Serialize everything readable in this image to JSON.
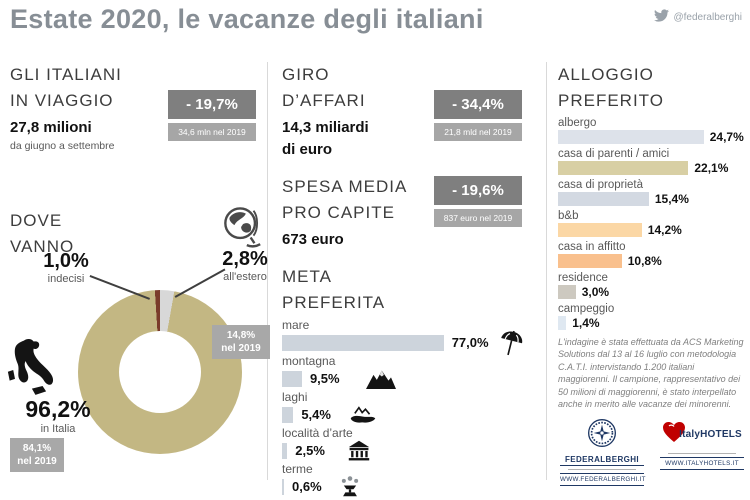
{
  "header": {
    "title": "Estate 2020, le vacanze degli italiani",
    "twitter_handle": "@federalberghi"
  },
  "colors": {
    "title_gray": "#878e95",
    "badge_dark": "#7f7f7f",
    "badge_light": "#a6a6a6",
    "navy": "#1f3864",
    "heart_red": "#c00000"
  },
  "travelers": {
    "heading_line1": "GLI ITALIANI",
    "heading_line2": "IN VIAGGIO",
    "value": "27,8 milioni",
    "period": "da giugno a settembre",
    "delta": "- 19,7%",
    "previous": "34,6 mln nel 2019"
  },
  "business": {
    "heading_line1": "GIRO",
    "heading_line2": "D’AFFARI",
    "value_line1": "14,3 miliardi",
    "value_line2": "di euro",
    "delta": "- 34,4%",
    "previous": "21,8 mld nel 2019"
  },
  "spending": {
    "heading_line1": "SPESA MEDIA",
    "heading_line2": "PRO CAPITE",
    "value": "673 euro",
    "delta": "- 19,6%",
    "previous": "837 euro nel 2019"
  },
  "where": {
    "heading_line1": "DOVE",
    "heading_line2": "VANNO",
    "undecided_value": "1,0%",
    "undecided_label": "indecisi",
    "abroad_value": "2,8%",
    "abroad_label": "all'estero",
    "abroad_2019_line1": "14,8%",
    "abroad_2019_line2": "nel 2019",
    "italy_value": "96,2%",
    "italy_label": "in Italia",
    "italy_2019_line1": "84,1%",
    "italy_2019_line2": "nel 2019"
  },
  "destination": {
    "heading_line1": "META",
    "heading_line2": "PREFERITA"
  },
  "lodging": {
    "heading_line1": "ALLOGGIO",
    "heading_line2": "PREFERITO"
  },
  "methodology": "L'indagine è stata effettuata da ACS Marketing Solutions dal 13 al 16 luglio con metodologia C.A.T.I. intervistando 1.200 italiani maggiorenni. Il campione, rappresentativo dei 50 milioni di maggiorenni, è stato interpellato anche in merito alle vacanze dei minorenni.",
  "logos": {
    "federalberghi_name": "FEDERALBERGHI",
    "federalberghi_url": "WWW.FEDERALBERGHI.IT",
    "italyhotels_name": "ItalyHOTELS",
    "italyhotels_url": "WWW.ITALYHOTELS.IT"
  },
  "chart_data": [
    {
      "type": "pie",
      "title": "DOVE VANNO",
      "labels": [
        "in Italia",
        "all'estero",
        "indecisi"
      ],
      "values": [
        96.2,
        2.8,
        1.0
      ],
      "value_labels": [
        "96,2%",
        "2,8%",
        "1,0%"
      ],
      "colors": [
        "#c3b783",
        "#d8d8d8",
        "#7a3b2a"
      ],
      "annotations": [
        "in Italia: 84,1% nel 2019",
        "all'estero: 14,8% nel 2019"
      ]
    },
    {
      "type": "bar",
      "title": "META PREFERITA",
      "orientation": "horizontal",
      "unit": "%",
      "items": [
        {
          "label": "mare",
          "pct": 77.0,
          "value_label": "77,0%",
          "icon": "beach-umbrella-icon",
          "color": "#cdd4dc"
        },
        {
          "label": "montagna",
          "pct": 9.5,
          "value_label": "9,5%",
          "icon": "mountains-icon",
          "color": "#cdd4dc"
        },
        {
          "label": "laghi",
          "pct": 5.4,
          "value_label": "5,4%",
          "icon": "lake-icon",
          "color": "#cdd4dc"
        },
        {
          "label": "località d’arte",
          "pct": 2.5,
          "value_label": "2,5%",
          "icon": "temple-icon",
          "color": "#cdd4dc"
        },
        {
          "label": "terme",
          "pct": 0.6,
          "value_label": "0,6%",
          "icon": "fountain-icon",
          "color": "#cdd4dc"
        }
      ]
    },
    {
      "type": "bar",
      "title": "ALLOGGIO PREFERITO",
      "orientation": "horizontal",
      "unit": "%",
      "items": [
        {
          "label": "albergo",
          "pct": 24.7,
          "value_label": "24,7%",
          "color": "#dde2ea"
        },
        {
          "label": "casa di parenti / amici",
          "pct": 22.1,
          "value_label": "22,1%",
          "color": "#d8cfa4"
        },
        {
          "label": "casa di proprietà",
          "pct": 15.4,
          "value_label": "15,4%",
          "color": "#d3d9e2"
        },
        {
          "label": "b&b",
          "pct": 14.2,
          "value_label": "14,2%",
          "color": "#fbd7a5"
        },
        {
          "label": "casa in affitto",
          "pct": 10.8,
          "value_label": "10,8%",
          "color": "#f9c08d"
        },
        {
          "label": "residence",
          "pct": 3.0,
          "value_label": "3,0%",
          "color": "#cdc9c0"
        },
        {
          "label": "campeggio",
          "pct": 1.4,
          "value_label": "1,4%",
          "color": "#dfe8f1"
        }
      ]
    }
  ]
}
